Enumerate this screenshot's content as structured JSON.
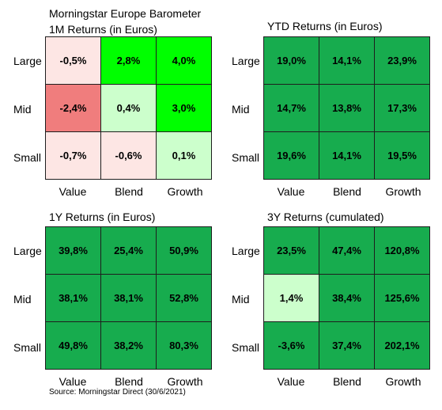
{
  "header_line": "Morningstar Europe Barometer",
  "source": "Source: Morningstar Direct (30/6/2021)",
  "colors": {
    "green_strong": "#00ff00",
    "green_dark": "#17ac4e",
    "green_light": "#ccffcc",
    "red_light": "#ffe8e6",
    "red_mid": "#f07d7d"
  },
  "chart_data": [
    {
      "type": "table",
      "title": "1M Returns (in Euros)",
      "rows": [
        "Large",
        "Mid",
        "Small"
      ],
      "columns": [
        "Value",
        "Blend",
        "Growth"
      ],
      "values": [
        [
          "-0,5%",
          "2,8%",
          "4,0%"
        ],
        [
          "-2,4%",
          "0,4%",
          "3,0%"
        ],
        [
          "-0,7%",
          "-0,6%",
          "0,1%"
        ]
      ],
      "colors": [
        [
          "#fde6e4",
          "#00ff00",
          "#00ff00"
        ],
        [
          "#f07d7d",
          "#ccffcc",
          "#00ff00"
        ],
        [
          "#fde6e4",
          "#fde6e4",
          "#ccffcc"
        ]
      ]
    },
    {
      "type": "table",
      "title": "YTD Returns (in Euros)",
      "rows": [
        "Large",
        "Mid",
        "Small"
      ],
      "columns": [
        "Value",
        "Blend",
        "Growth"
      ],
      "values": [
        [
          "19,0%",
          "14,1%",
          "23,9%"
        ],
        [
          "14,7%",
          "13,8%",
          "17,3%"
        ],
        [
          "19,6%",
          "14,1%",
          "19,5%"
        ]
      ],
      "colors": [
        [
          "#17ac4e",
          "#17ac4e",
          "#17ac4e"
        ],
        [
          "#17ac4e",
          "#17ac4e",
          "#17ac4e"
        ],
        [
          "#17ac4e",
          "#17ac4e",
          "#17ac4e"
        ]
      ]
    },
    {
      "type": "table",
      "title": "1Y Returns (in Euros)",
      "rows": [
        "Large",
        "Mid",
        "Small"
      ],
      "columns": [
        "Value",
        "Blend",
        "Growth"
      ],
      "values": [
        [
          "39,8%",
          "25,4%",
          "50,9%"
        ],
        [
          "38,1%",
          "38,1%",
          "52,8%"
        ],
        [
          "49,8%",
          "38,2%",
          "80,3%"
        ]
      ],
      "colors": [
        [
          "#17ac4e",
          "#17ac4e",
          "#17ac4e"
        ],
        [
          "#17ac4e",
          "#17ac4e",
          "#17ac4e"
        ],
        [
          "#17ac4e",
          "#17ac4e",
          "#17ac4e"
        ]
      ]
    },
    {
      "type": "table",
      "title": "3Y Returns (cumulated)",
      "rows": [
        "Large",
        "Mid",
        "Small"
      ],
      "columns": [
        "Value",
        "Blend",
        "Growth"
      ],
      "values": [
        [
          "23,5%",
          "47,4%",
          "120,8%"
        ],
        [
          "1,4%",
          "38,4%",
          "125,6%"
        ],
        [
          "-3,6%",
          "37,4%",
          "202,1%"
        ]
      ],
      "colors": [
        [
          "#17ac4e",
          "#17ac4e",
          "#17ac4e"
        ],
        [
          "#ccffcc",
          "#17ac4e",
          "#17ac4e"
        ],
        [
          "#17ac4e",
          "#17ac4e",
          "#17ac4e"
        ]
      ]
    }
  ]
}
